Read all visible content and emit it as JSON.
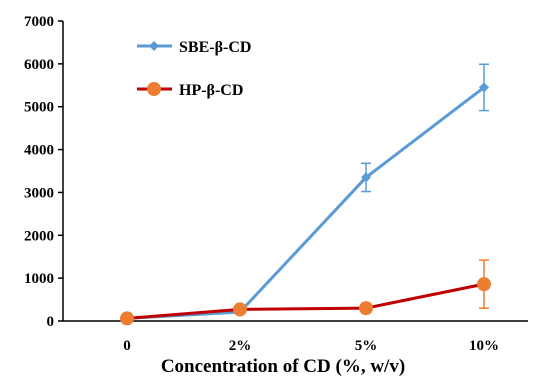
{
  "chart_data": {
    "type": "line",
    "categories": [
      "0",
      "2%",
      "5%",
      "10%"
    ],
    "xlabel": "Concentration of CD (%, w/v)",
    "ylabel": "",
    "ylim": [
      0,
      7000
    ],
    "yticks": [
      0,
      1000,
      2000,
      3000,
      4000,
      5000,
      6000,
      7000
    ],
    "grid": false,
    "legend_position": "top-left",
    "series": [
      {
        "name": "SBE-β-CD",
        "color": "#5b9bd5",
        "marker": "diamond",
        "values": [
          60,
          210,
          3350,
          5450
        ],
        "errors": [
          null,
          null,
          330,
          540
        ]
      },
      {
        "name": "HP-β-CD",
        "color": "#c00000",
        "marker_color": "#ed7d31",
        "marker": "circle",
        "values": [
          60,
          270,
          300,
          860
        ],
        "errors": [
          null,
          70,
          110,
          560
        ]
      }
    ]
  }
}
